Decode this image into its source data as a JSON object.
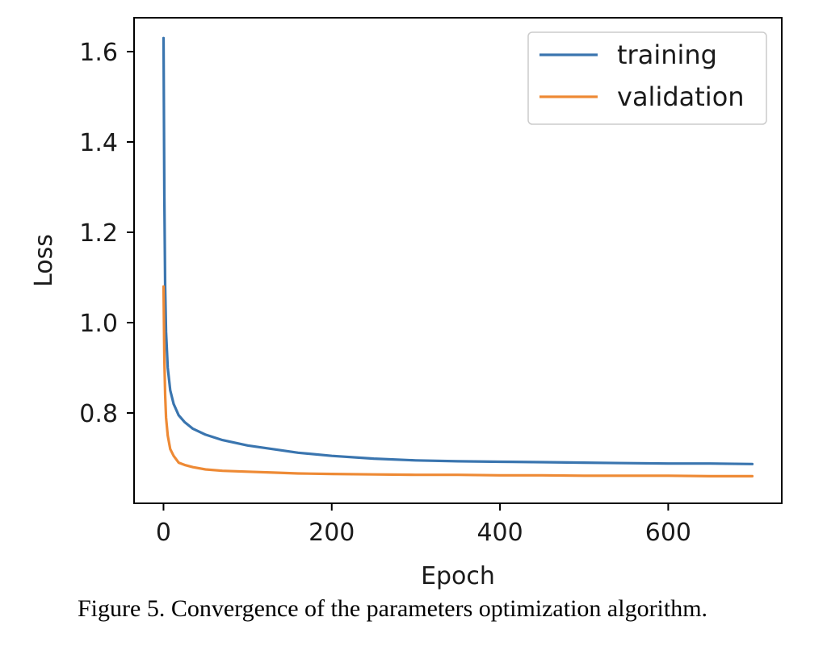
{
  "chart_data": {
    "type": "line",
    "xlabel": "Epoch",
    "ylabel": "Loss",
    "xlim": [
      -35,
      735
    ],
    "ylim": [
      0.6,
      1.675
    ],
    "xticks": [
      0,
      200,
      400,
      600
    ],
    "yticks": [
      0.8,
      1.0,
      1.2,
      1.4,
      1.6
    ],
    "xtick_labels": [
      "0",
      "200",
      "400",
      "600"
    ],
    "ytick_labels": [
      "0.8",
      "1.0",
      "1.2",
      "1.4",
      "1.6"
    ],
    "legend_position": "top-right",
    "grid": false,
    "series": [
      {
        "name": "training",
        "color": "#3a75af",
        "x": [
          0,
          1,
          2,
          3,
          5,
          8,
          12,
          18,
          25,
          35,
          50,
          70,
          100,
          130,
          160,
          200,
          250,
          300,
          350,
          400,
          450,
          500,
          550,
          600,
          650,
          700
        ],
        "y": [
          1.63,
          1.28,
          1.08,
          0.98,
          0.9,
          0.85,
          0.82,
          0.795,
          0.78,
          0.765,
          0.752,
          0.74,
          0.728,
          0.72,
          0.712,
          0.705,
          0.699,
          0.695,
          0.693,
          0.692,
          0.691,
          0.69,
          0.689,
          0.688,
          0.688,
          0.687
        ]
      },
      {
        "name": "validation",
        "color": "#ee8a35",
        "x": [
          0,
          1,
          2,
          3,
          5,
          8,
          12,
          18,
          25,
          35,
          50,
          70,
          100,
          130,
          160,
          200,
          250,
          300,
          350,
          400,
          450,
          500,
          550,
          600,
          650,
          700
        ],
        "y": [
          1.08,
          0.92,
          0.84,
          0.79,
          0.75,
          0.72,
          0.705,
          0.69,
          0.685,
          0.68,
          0.675,
          0.672,
          0.67,
          0.668,
          0.666,
          0.665,
          0.664,
          0.663,
          0.663,
          0.662,
          0.662,
          0.661,
          0.661,
          0.661,
          0.66,
          0.66
        ]
      }
    ]
  },
  "caption": "Figure 5. Convergence of the parameters optimization algorithm."
}
